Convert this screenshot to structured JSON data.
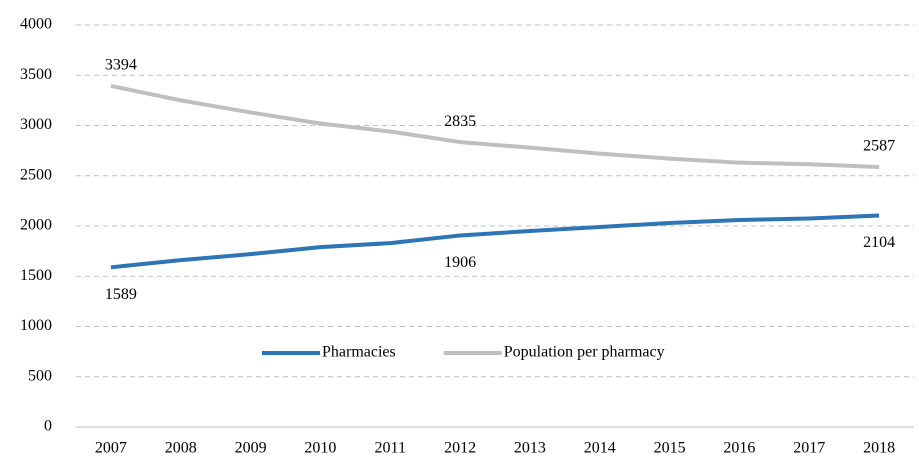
{
  "chart_data": {
    "type": "line",
    "categories": [
      "2007",
      "2008",
      "2009",
      "2010",
      "2011",
      "2012",
      "2013",
      "2014",
      "2015",
      "2016",
      "2017",
      "2018"
    ],
    "series": [
      {
        "name": "Pharmacies",
        "color": "#2e75b6",
        "values": [
          1589,
          1660,
          1720,
          1790,
          1830,
          1906,
          1950,
          1990,
          2030,
          2060,
          2075,
          2104
        ],
        "value_labels": [
          "1589",
          null,
          null,
          null,
          null,
          "1906",
          null,
          null,
          null,
          null,
          null,
          "2104"
        ]
      },
      {
        "name": "Population per pharmacy",
        "color": "#bfbfbf",
        "values": [
          3394,
          3250,
          3130,
          3020,
          2940,
          2835,
          2780,
          2720,
          2670,
          2630,
          2615,
          2587
        ],
        "value_labels": [
          "3394",
          null,
          null,
          null,
          null,
          "2835",
          null,
          null,
          null,
          null,
          null,
          "2587"
        ]
      }
    ],
    "ylim": [
      0,
      4000
    ],
    "yticks": [
      0,
      500,
      1000,
      1500,
      2000,
      2500,
      3000,
      3500,
      4000
    ],
    "grid": true,
    "legend": "center"
  }
}
